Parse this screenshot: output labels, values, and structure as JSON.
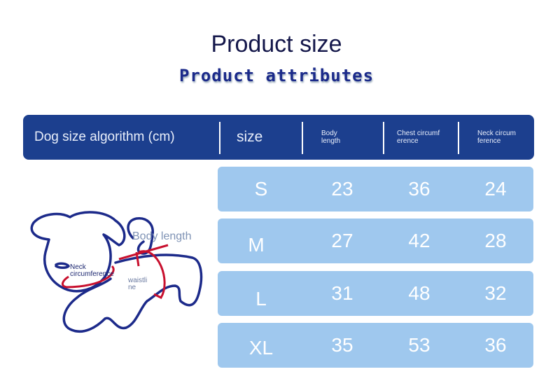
{
  "title": "Product size",
  "subtitle": "Product attributes",
  "table": {
    "headers": {
      "algorithm": "Dog size algorithm (cm)",
      "size": "size",
      "body": "Body length",
      "chest": "Chest circumference",
      "neck": "Neck circumference"
    },
    "rows": [
      {
        "size": "S",
        "body": "23",
        "chest": "36",
        "neck": "24"
      },
      {
        "size": "M",
        "body": "27",
        "chest": "42",
        "neck": "28"
      },
      {
        "size": "L",
        "body": "31",
        "chest": "48",
        "neck": "32"
      },
      {
        "size": "XL",
        "body": "35",
        "chest": "53",
        "neck": "36"
      }
    ]
  },
  "illustration": {
    "body_length": "Body length",
    "neck": "Neck circumference",
    "waist": "waistline"
  },
  "colors": {
    "header": "#1c3f8e",
    "row": "#9fc8ee",
    "outline": "#1c2a8a",
    "arrow": "#c8102e"
  }
}
